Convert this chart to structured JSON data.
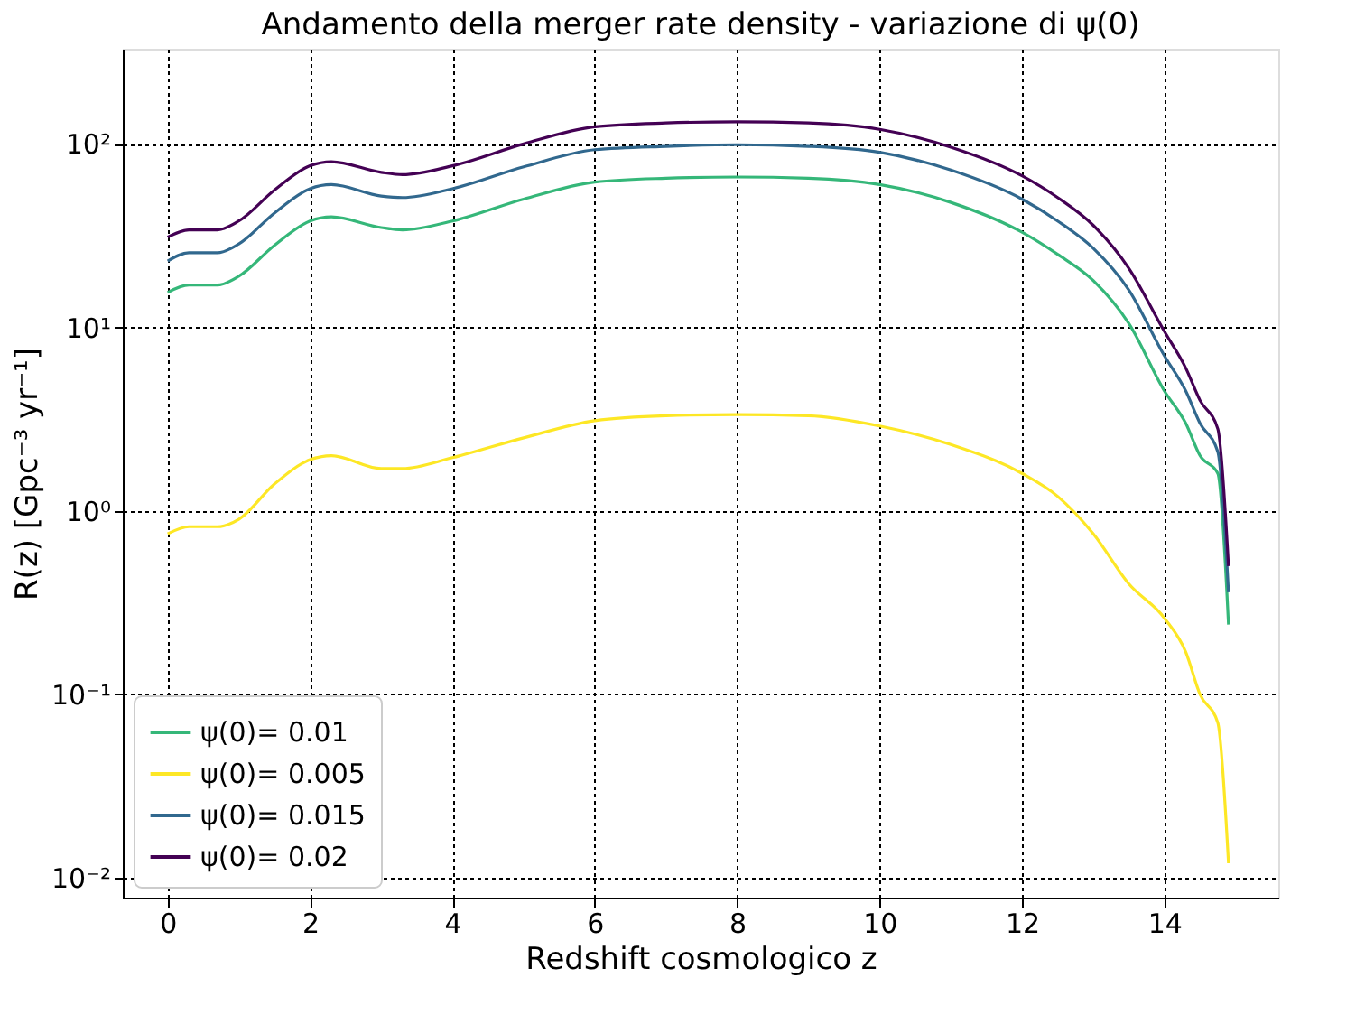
{
  "chart_data": {
    "type": "line",
    "title": "Andamento della merger rate density - variazione di ψ(0)",
    "xlabel": "Redshift cosmologico z",
    "ylabel": "R(z) [Gpc⁻³ yr⁻¹]",
    "x": [
      0,
      0.3,
      0.7,
      1,
      1.5,
      2,
      2.3,
      3,
      3.3,
      4,
      5,
      6,
      7,
      8,
      9,
      10,
      11,
      12,
      12.5,
      13,
      13.5,
      14,
      14.3,
      14.5,
      14.75,
      14.9
    ],
    "series": [
      {
        "name": "ψ(0)= 0.01",
        "color": "#35b779",
        "values": [
          15.5,
          17,
          17,
          19,
          28,
          38,
          40,
          35,
          34,
          38,
          50,
          62,
          65,
          66,
          65,
          60,
          48,
          33,
          25,
          18,
          10.5,
          4.5,
          3,
          2,
          1.6,
          0.24
        ]
      },
      {
        "name": "ψ(0)= 0.005",
        "color": "#fde725",
        "values": [
          0.75,
          0.82,
          0.82,
          0.9,
          1.4,
          1.9,
          2.0,
          1.7,
          1.7,
          1.95,
          2.5,
          3.1,
          3.3,
          3.35,
          3.3,
          2.9,
          2.3,
          1.6,
          1.2,
          0.75,
          0.4,
          0.26,
          0.17,
          0.1,
          0.07,
          0.012
        ]
      },
      {
        "name": "ψ(0)= 0.015",
        "color": "#31688e",
        "values": [
          23,
          25.5,
          25.5,
          28.5,
          42,
          57,
          60,
          52,
          51,
          57,
          75,
          93,
          97,
          99,
          97,
          90,
          72,
          50,
          38,
          27,
          16,
          7,
          4.5,
          3,
          2.1,
          0.36
        ]
      },
      {
        "name": "ψ(0)= 0.02",
        "color": "#440154",
        "values": [
          31,
          34,
          34,
          38,
          56,
          76,
          80,
          70,
          68,
          76,
          100,
          124,
          130,
          132,
          130,
          120,
          96,
          67,
          51,
          36,
          21,
          9.5,
          6,
          4,
          2.8,
          0.5
        ]
      }
    ],
    "xlim": [
      -0.63,
      15.6
    ],
    "ylim": [
      0.0078,
      330
    ],
    "log": true,
    "xticks": [
      0,
      2,
      4,
      6,
      8,
      10,
      12,
      14
    ],
    "yticks": [
      {
        "value": 0.01,
        "label": "10⁻²"
      },
      {
        "value": 0.1,
        "label": "10⁻¹"
      },
      {
        "value": 1,
        "label": "10⁰"
      },
      {
        "value": 10,
        "label": "10¹"
      },
      {
        "value": 100,
        "label": "10²"
      }
    ],
    "grid": true,
    "legend": "bottom left",
    "line_style": "solid"
  }
}
